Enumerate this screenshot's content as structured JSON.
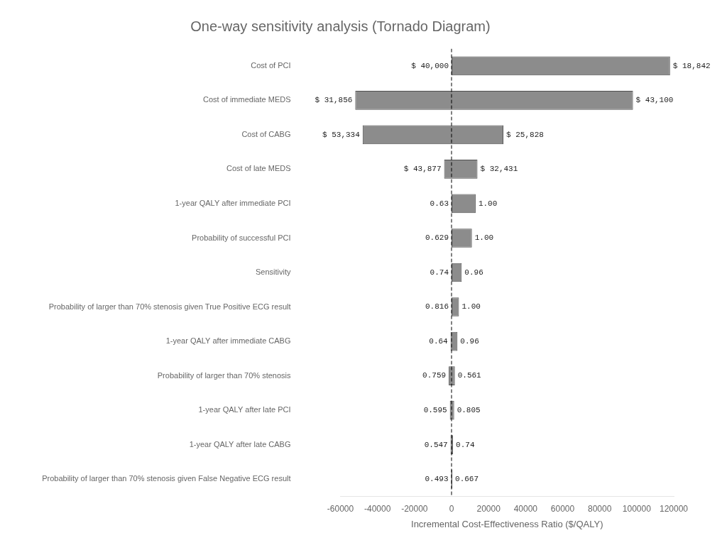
{
  "chart_data": {
    "type": "bar",
    "orientation": "horizontal",
    "title": "One-way sensitivity analysis (Tornado Diagram)",
    "xlabel": "Incremental Cost-Effectiveness Ratio ($/QALY)",
    "categories": [
      "Cost of PCI",
      "Cost of immediate MEDS",
      "Cost of CABG",
      "Cost of late MEDS",
      "1-year QALY after immediate PCI",
      "Probability of successful PCI",
      "Sensitivity",
      "Probability of larger than 70% stenosis given True Positive ECG result",
      "1-year QALY after immediate CABG",
      "Probability of larger than 70% stenosis",
      "1-year QALY after late PCI",
      "1-year QALY after late CABG",
      "Probability of larger than 70% stenosis given False Negative ECG result"
    ],
    "values": [
      [
        0,
        118000
      ],
      [
        -52000,
        98000
      ],
      [
        -48000,
        28000
      ],
      [
        -4000,
        14000
      ],
      [
        0,
        13000
      ],
      [
        0,
        11000
      ],
      [
        0,
        5500
      ],
      [
        0,
        4000
      ],
      [
        -500,
        3200
      ],
      [
        -1500,
        1800
      ],
      [
        -900,
        1400
      ],
      [
        -500,
        800
      ],
      [
        -200,
        400
      ]
    ],
    "annotations_low": [
      "$ 40,000",
      "$ 31,856",
      "$ 53,334",
      "$ 43,877",
      "0.63",
      "0.629",
      "0.74",
      "0.816",
      "0.64",
      "0.759",
      "0.595",
      "0.547",
      "0.493"
    ],
    "annotations_high": [
      "$ 18,842",
      "$ 43,100",
      "$ 25,828",
      "$ 32,431",
      "1.00",
      "1.00",
      "0.96",
      "1.00",
      "0.96",
      "0.561",
      "0.805",
      "0.74",
      "0.667"
    ],
    "color": "#8c8c8c",
    "xlim": [
      -60000,
      120000
    ],
    "xticks": [
      -60000,
      -40000,
      -20000,
      0,
      20000,
      40000,
      60000,
      80000,
      100000,
      120000
    ],
    "vline": 0,
    "grid": false
  }
}
